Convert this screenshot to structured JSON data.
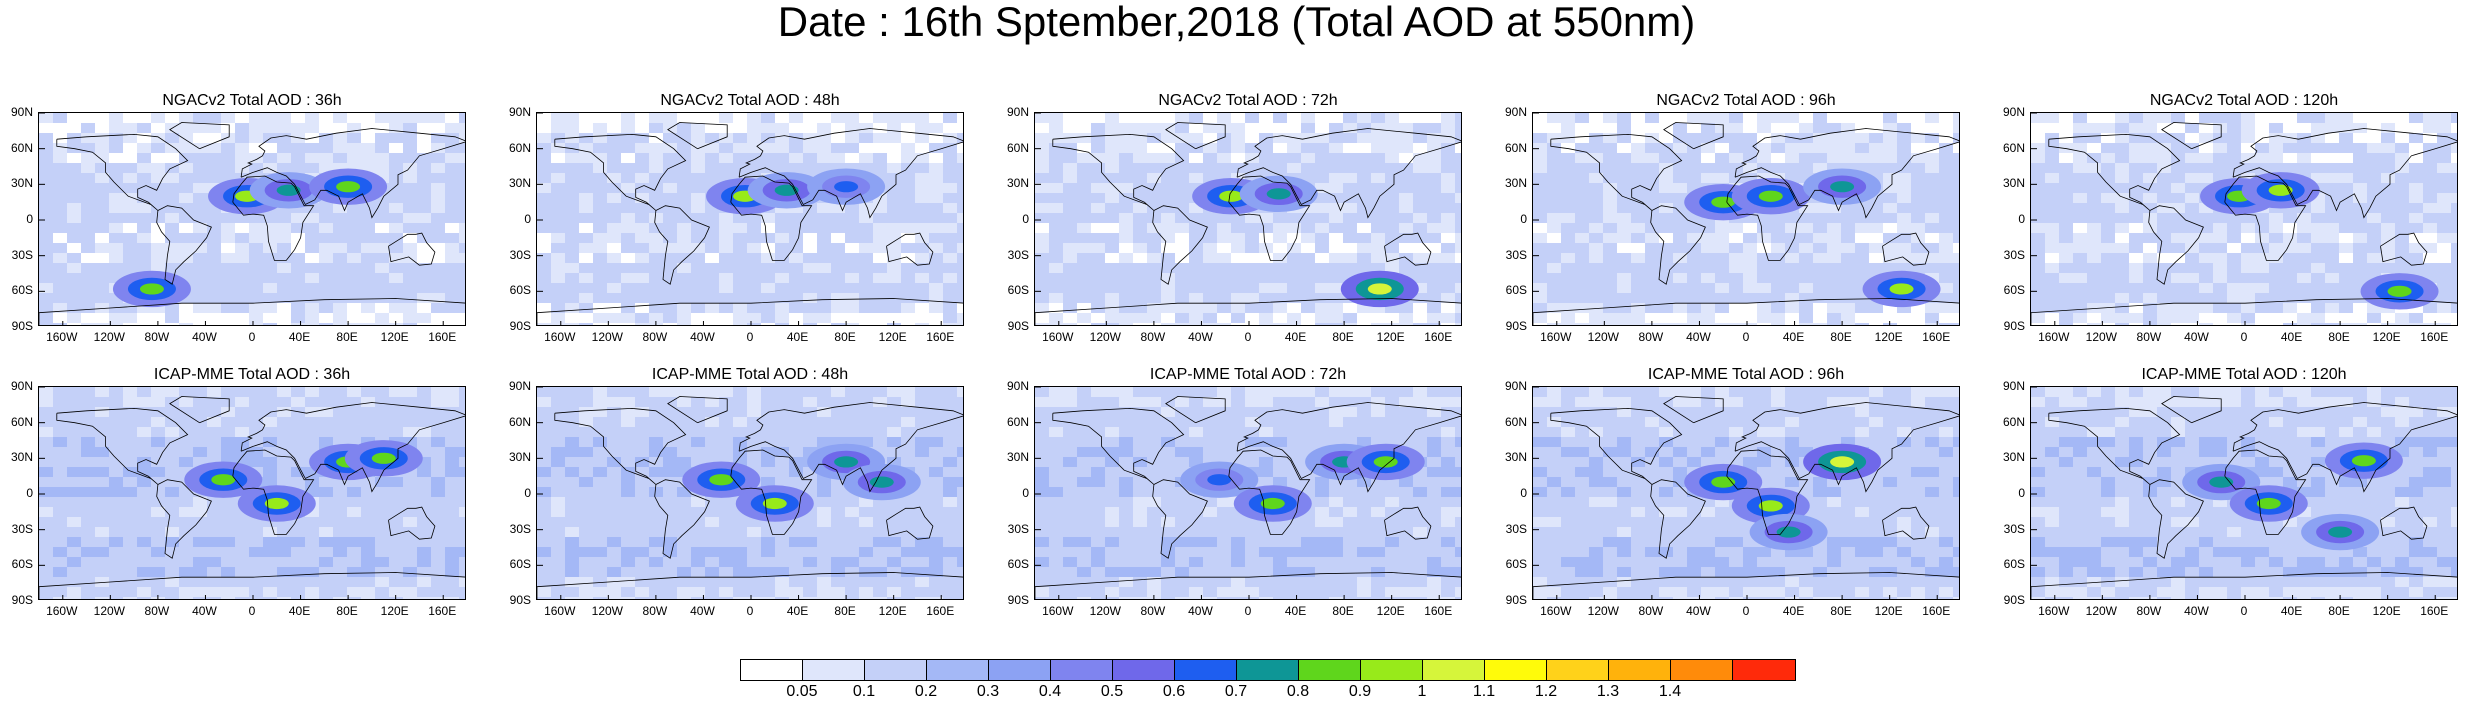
{
  "title": "Date : 16th Sptember,2018 (Total AOD at 550nm)",
  "lat_labels": [
    "90N",
    "60N",
    "30N",
    "0",
    "30S",
    "60S",
    "90S"
  ],
  "lon_labels": [
    "160W",
    "120W",
    "80W",
    "40W",
    "0",
    "40E",
    "80E",
    "120E",
    "160E"
  ],
  "panels": [
    {
      "title": "NGACv2 Total AOD : 36h",
      "hotspots": [
        {
          "lon": -5,
          "lat": 20,
          "aod": 0.9
        },
        {
          "lon": 30,
          "lat": 25,
          "aod": 0.7
        },
        {
          "lon": 80,
          "lat": 28,
          "aod": 0.8
        },
        {
          "lon": -85,
          "lat": -58,
          "aod": 0.8
        }
      ]
    },
    {
      "title": "NGACv2 Total AOD : 48h",
      "hotspots": [
        {
          "lon": -5,
          "lat": 20,
          "aod": 0.9
        },
        {
          "lon": 30,
          "lat": 25,
          "aod": 0.7
        },
        {
          "lon": 80,
          "lat": 28,
          "aod": 0.6
        }
      ]
    },
    {
      "title": "NGACv2 Total AOD : 72h",
      "hotspots": [
        {
          "lon": -15,
          "lat": 20,
          "aod": 0.9
        },
        {
          "lon": 25,
          "lat": 22,
          "aod": 0.7
        },
        {
          "lon": 110,
          "lat": -58,
          "aod": 1.0
        }
      ]
    },
    {
      "title": "NGACv2 Total AOD : 96h",
      "hotspots": [
        {
          "lon": -20,
          "lat": 15,
          "aod": 0.8
        },
        {
          "lon": 20,
          "lat": 20,
          "aod": 0.8
        },
        {
          "lon": 80,
          "lat": 28,
          "aod": 0.7
        },
        {
          "lon": 130,
          "lat": -58,
          "aod": 0.9
        }
      ]
    },
    {
      "title": "NGACv2 Total AOD : 120h",
      "hotspots": [
        {
          "lon": -5,
          "lat": 20,
          "aod": 0.8
        },
        {
          "lon": 30,
          "lat": 25,
          "aod": 0.9
        },
        {
          "lon": 130,
          "lat": -60,
          "aod": 0.8
        }
      ]
    },
    {
      "title": "ICAP-MME Total AOD : 36h",
      "hotspots": [
        {
          "lon": -25,
          "lat": 12,
          "aod": 0.8
        },
        {
          "lon": 20,
          "lat": -8,
          "aod": 0.9
        },
        {
          "lon": 80,
          "lat": 27,
          "aod": 0.8
        },
        {
          "lon": 110,
          "lat": 30,
          "aod": 0.8
        }
      ]
    },
    {
      "title": "ICAP-MME Total AOD : 48h",
      "hotspots": [
        {
          "lon": -25,
          "lat": 12,
          "aod": 0.8
        },
        {
          "lon": 20,
          "lat": -8,
          "aod": 0.9
        },
        {
          "lon": 80,
          "lat": 27,
          "aod": 0.7
        },
        {
          "lon": 110,
          "lat": 10,
          "aod": 0.7
        }
      ]
    },
    {
      "title": "ICAP-MME Total AOD : 72h",
      "hotspots": [
        {
          "lon": -25,
          "lat": 12,
          "aod": 0.6
        },
        {
          "lon": 20,
          "lat": -8,
          "aod": 0.8
        },
        {
          "lon": 80,
          "lat": 27,
          "aod": 0.7
        },
        {
          "lon": 115,
          "lat": 27,
          "aod": 0.8
        }
      ]
    },
    {
      "title": "ICAP-MME Total AOD : 96h",
      "hotspots": [
        {
          "lon": -20,
          "lat": 10,
          "aod": 0.8
        },
        {
          "lon": 20,
          "lat": -10,
          "aod": 0.9
        },
        {
          "lon": 80,
          "lat": 27,
          "aod": 1.0
        },
        {
          "lon": 35,
          "lat": -32,
          "aod": 0.7
        }
      ]
    },
    {
      "title": "ICAP-MME Total AOD : 120h",
      "hotspots": [
        {
          "lon": -20,
          "lat": 10,
          "aod": 0.7
        },
        {
          "lon": 20,
          "lat": -8,
          "aod": 0.8
        },
        {
          "lon": 100,
          "lat": 28,
          "aod": 0.8
        },
        {
          "lon": 80,
          "lat": -32,
          "aod": 0.7
        }
      ]
    }
  ],
  "colorbar": {
    "colors": [
      "#ffffff",
      "#dfe6fb",
      "#c4d0f8",
      "#a4b8f6",
      "#8ca2f3",
      "#7f84ef",
      "#6f68ea",
      "#1e5ef0",
      "#0e9696",
      "#5fd61c",
      "#98ea1a",
      "#d6f53a",
      "#fffb0a",
      "#ffd21a",
      "#ffb20c",
      "#ff8b0a",
      "#ff2a0a"
    ],
    "labels": [
      "0.05",
      "0.1",
      "0.2",
      "0.3",
      "0.4",
      "0.5",
      "0.6",
      "0.7",
      "0.8",
      "0.9",
      "1",
      "1.1",
      "1.2",
      "1.3",
      "1.4"
    ]
  }
}
